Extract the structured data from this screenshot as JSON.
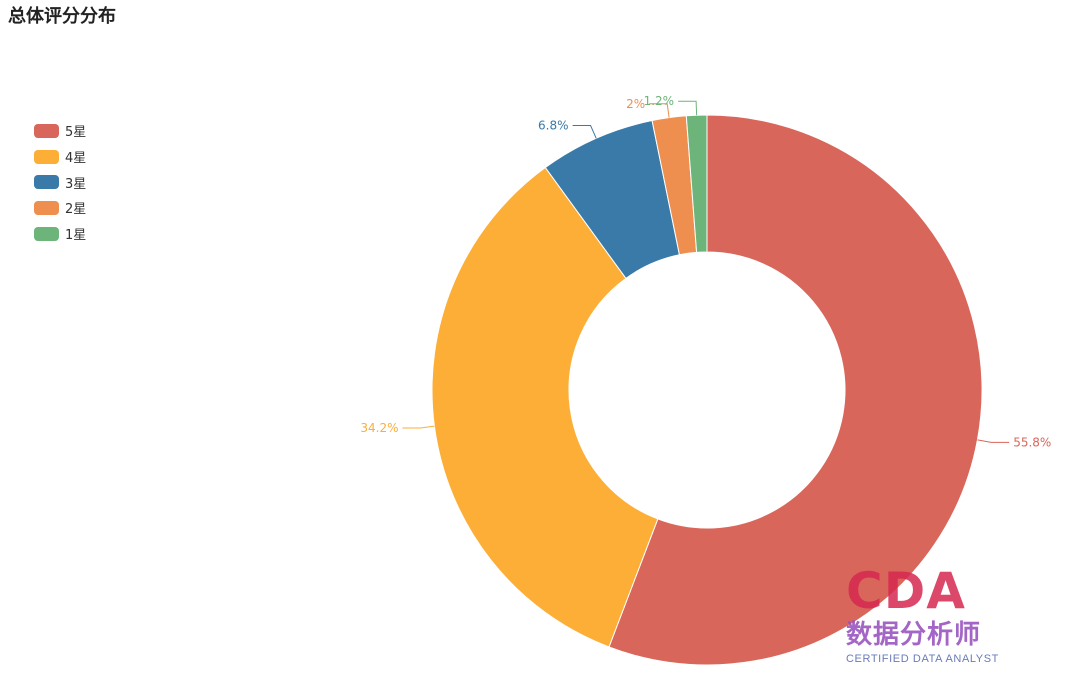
{
  "chart_data": {
    "type": "pie",
    "title": "总体评分分布",
    "legend_position": "left",
    "slices": [
      {
        "name": "5星",
        "value": 55.8,
        "label": "55.8%",
        "color": "#d9665a"
      },
      {
        "name": "4星",
        "value": 34.2,
        "label": "34.2%",
        "color": "#fcae37"
      },
      {
        "name": "3星",
        "value": 6.8,
        "label": "6.8%",
        "color": "#3a7aa8"
      },
      {
        "name": "2星",
        "value": 2.0,
        "label": "2%",
        "color": "#ee8e4f"
      },
      {
        "name": "1星",
        "value": 1.2,
        "label": "1.2%",
        "color": "#6db47a"
      }
    ]
  },
  "watermark": {
    "logo": "CDA",
    "name": "数据分析师",
    "subtitle": "CERTIFIED DATA ANALYST"
  }
}
